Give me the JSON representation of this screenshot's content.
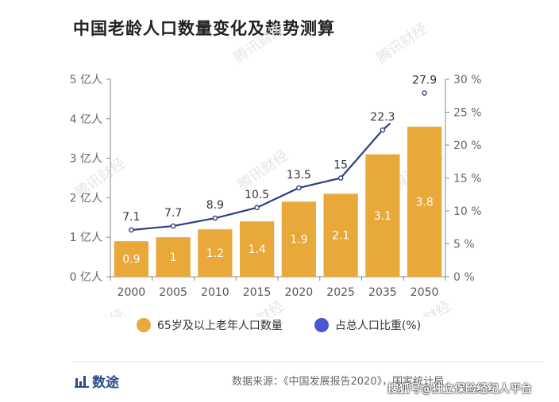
{
  "title": "中国老龄人口数量变化及趋势测算",
  "watermark_text": "腾讯财经",
  "legend": {
    "bar_label": "65岁及以上老年人口数量",
    "line_label": "占总人口比重(%)"
  },
  "colors": {
    "bar": "#e8a83a",
    "line": "#2e3f80",
    "point_fill": "#ffffff",
    "legend_line": "#4a55d6",
    "axis": "#888888"
  },
  "footer": {
    "brand": "数途",
    "brand_icon": "bar-chart-icon",
    "source": "数据来源：《中国发展报告2020》，国家统计局",
    "platform_watermark": "搜狐号@独立保险经纪人平台"
  },
  "chart_data": {
    "type": "bar+line",
    "categories": [
      "2000",
      "2005",
      "2010",
      "2015",
      "2020",
      "2025",
      "2035",
      "2050"
    ],
    "series": [
      {
        "name": "65岁及以上老年人口数量",
        "type": "bar",
        "axis": "left",
        "values": [
          0.9,
          1,
          1.2,
          1.4,
          1.9,
          2.1,
          3.1,
          3.8
        ]
      },
      {
        "name": "占总人口比重(%)",
        "type": "line",
        "axis": "right",
        "values": [
          7.1,
          7.7,
          8.9,
          10.5,
          13.5,
          15,
          22.3,
          27.9
        ],
        "last_point_disconnected": true
      }
    ],
    "y_left": {
      "ylim": [
        0,
        5
      ],
      "ticks": [
        "0 亿人",
        "1 亿人",
        "2 亿人",
        "3 亿人",
        "4 亿人",
        "5 亿人"
      ]
    },
    "y_right": {
      "ylim": [
        0,
        30
      ],
      "ticks": [
        "0 %",
        "5 %",
        "10 %",
        "15 %",
        "20 %",
        "25 %",
        "30 %"
      ]
    },
    "grid": false,
    "legend_position": "bottom"
  }
}
